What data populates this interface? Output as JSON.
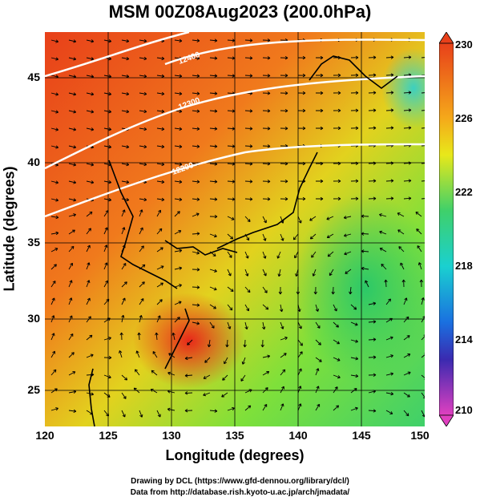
{
  "title": "MSM 00Z08Aug2023 (200.0hPa)",
  "xlabel": "Longitude (degrees)",
  "ylabel": "Latitude  (degrees)",
  "x_ticks": [
    "120",
    "125",
    "130",
    "135",
    "140",
    "145",
    "150"
  ],
  "y_ticks": [
    "45",
    "40",
    "35",
    "30",
    "25"
  ],
  "colorbar_ticks": [
    "230",
    "226",
    "222",
    "218",
    "214",
    "210"
  ],
  "contour_labels": [
    "12400",
    "12300",
    "12200"
  ],
  "credit_line1": "Drawing by DCL (https://www.gfd-dennou.org/library/dcl/)",
  "credit_line2": "Data from http://database.rish.kyoto-u.ac.jp/arch/jmadata/",
  "colors": {
    "warm": "#e8401a",
    "mid": "#f5c21a",
    "cool": "#3fd06a",
    "cold_end": "#e040c0"
  }
}
